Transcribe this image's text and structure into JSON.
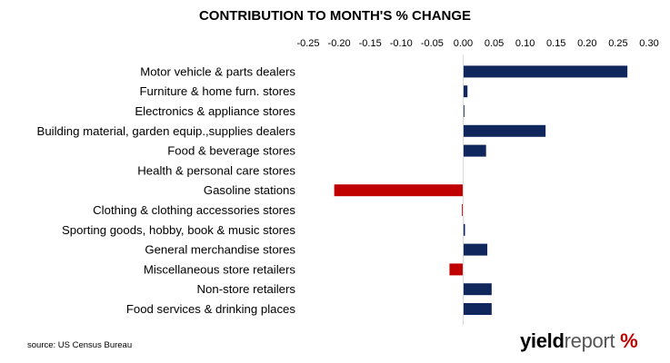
{
  "chart_data": {
    "type": "bar",
    "orientation": "horizontal",
    "title": "CONTRIBUTION TO MONTH'S % CHANGE",
    "xlim": [
      -0.25,
      0.3
    ],
    "xticks": [
      "-0.25",
      "-0.20",
      "-0.15",
      "-0.10",
      "-0.05",
      "0.00",
      "0.05",
      "0.10",
      "0.15",
      "0.20",
      "0.25",
      "0.30"
    ],
    "xaxis_position": "top",
    "grid": false,
    "legend": "none",
    "categories": [
      "Motor vehicle & parts dealers",
      "Furniture & home furn. stores",
      "Electronics & appliance stores",
      "Building material, garden equip.,supplies dealers",
      "Food & beverage stores",
      "Health & personal care stores",
      "Gasoline stations",
      "Clothing & clothing accessories stores",
      "Sporting goods, hobby, book & music stores",
      "General merchandise stores",
      "Miscellaneous store retailers",
      "Non-store retailers",
      "Food services & drinking places"
    ],
    "values": [
      0.265,
      0.007,
      0.002,
      0.133,
      0.037,
      0.0,
      -0.208,
      -0.002,
      0.003,
      0.039,
      -0.022,
      0.046,
      0.046
    ],
    "colors": {
      "positive": "#10275e",
      "negative": "#c00000"
    }
  },
  "source": "source: US Census Bureau",
  "logo": {
    "bold": "yield",
    "light": "report",
    "symbol": " %"
  }
}
